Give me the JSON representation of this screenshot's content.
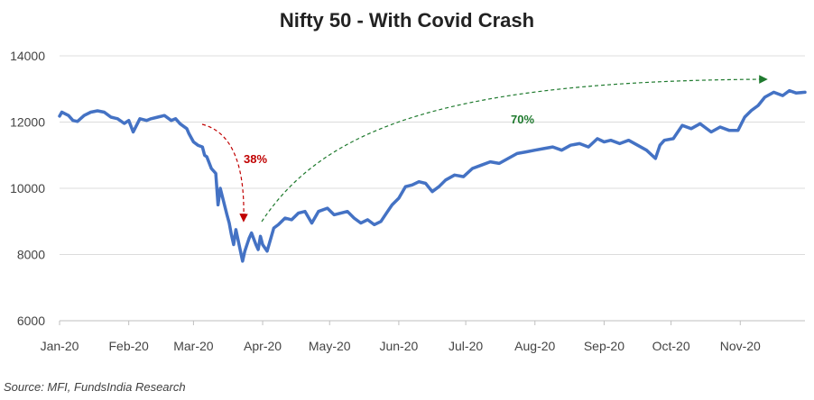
{
  "chart_data": {
    "type": "line",
    "title": "Nifty 50 - With Covid Crash",
    "xlabel": "",
    "ylabel": "",
    "ylim": [
      6000,
      14000
    ],
    "yticks": [
      6000,
      8000,
      10000,
      12000,
      14000
    ],
    "xlim": [
      "2020-01-01",
      "2020-11-30"
    ],
    "x_tick_labels": [
      "Jan-20",
      "Feb-20",
      "Mar-20",
      "Apr-20",
      "May-20",
      "Jun-20",
      "Jul-20",
      "Aug-20",
      "Sep-20",
      "Oct-20",
      "Nov-20"
    ],
    "x_tick_dates": [
      "2020-01-01",
      "2020-02-01",
      "2020-03-01",
      "2020-04-01",
      "2020-05-01",
      "2020-06-01",
      "2020-07-01",
      "2020-08-01",
      "2020-09-01",
      "2020-10-01",
      "2020-11-01"
    ],
    "grid": "horizontal",
    "series": [
      {
        "color": "#4472c4",
        "x": [
          "2020-01-01",
          "2020-01-02",
          "2020-01-05",
          "2020-01-07",
          "2020-01-09",
          "2020-01-12",
          "2020-01-15",
          "2020-01-18",
          "2020-01-21",
          "2020-01-24",
          "2020-01-27",
          "2020-01-30",
          "2020-02-01",
          "2020-02-03",
          "2020-02-06",
          "2020-02-09",
          "2020-02-11",
          "2020-02-14",
          "2020-02-17",
          "2020-02-20",
          "2020-02-22",
          "2020-02-24",
          "2020-02-25",
          "2020-02-27",
          "2020-02-28",
          "2020-03-01",
          "2020-03-03",
          "2020-03-05",
          "2020-03-06",
          "2020-03-07",
          "2020-03-09",
          "2020-03-11",
          "2020-03-12",
          "2020-03-13",
          "2020-03-16",
          "2020-03-17",
          "2020-03-18",
          "2020-03-19",
          "2020-03-20",
          "2020-03-23",
          "2020-03-24",
          "2020-03-25",
          "2020-03-26",
          "2020-03-27",
          "2020-03-29",
          "2020-03-30",
          "2020-03-31",
          "2020-04-01",
          "2020-04-03",
          "2020-04-06",
          "2020-04-08",
          "2020-04-11",
          "2020-04-14",
          "2020-04-17",
          "2020-04-20",
          "2020-04-23",
          "2020-04-26",
          "2020-04-30",
          "2020-05-03",
          "2020-05-06",
          "2020-05-09",
          "2020-05-12",
          "2020-05-15",
          "2020-05-18",
          "2020-05-21",
          "2020-05-24",
          "2020-05-27",
          "2020-05-29",
          "2020-06-01",
          "2020-06-04",
          "2020-06-07",
          "2020-06-10",
          "2020-06-13",
          "2020-06-16",
          "2020-06-19",
          "2020-06-22",
          "2020-06-26",
          "2020-06-30",
          "2020-07-04",
          "2020-07-08",
          "2020-07-12",
          "2020-07-16",
          "2020-07-20",
          "2020-07-24",
          "2020-07-28",
          "2020-08-01",
          "2020-08-05",
          "2020-08-09",
          "2020-08-13",
          "2020-08-17",
          "2020-08-21",
          "2020-08-25",
          "2020-08-29",
          "2020-09-01",
          "2020-09-04",
          "2020-09-08",
          "2020-09-12",
          "2020-09-16",
          "2020-09-20",
          "2020-09-24",
          "2020-09-26",
          "2020-09-28",
          "2020-10-02",
          "2020-10-06",
          "2020-10-10",
          "2020-10-14",
          "2020-10-16",
          "2020-10-19",
          "2020-10-23",
          "2020-10-27",
          "2020-10-31",
          "2020-11-03",
          "2020-11-06",
          "2020-11-09",
          "2020-11-12",
          "2020-11-16",
          "2020-11-20",
          "2020-11-23",
          "2020-11-26",
          "2020-11-30"
        ],
        "values": [
          12180,
          12300,
          12200,
          12050,
          12020,
          12200,
          12300,
          12340,
          12300,
          12150,
          12100,
          11960,
          12050,
          11700,
          12100,
          12050,
          12100,
          12150,
          12200,
          12050,
          12100,
          11950,
          11900,
          11800,
          11650,
          11400,
          11300,
          11250,
          11000,
          10950,
          10600,
          10450,
          9500,
          10000,
          9200,
          8950,
          8600,
          8300,
          8750,
          7800,
          8100,
          8300,
          8500,
          8650,
          8300,
          8150,
          8550,
          8300,
          8100,
          8800,
          8900,
          9100,
          9050,
          9250,
          9300,
          8950,
          9300,
          9400,
          9200,
          9250,
          9300,
          9100,
          8950,
          9050,
          8900,
          9000,
          9300,
          9500,
          9700,
          10050,
          10100,
          10200,
          10150,
          9900,
          10050,
          10250,
          10400,
          10350,
          10600,
          10700,
          10800,
          10750,
          10900,
          11050,
          11100,
          11150,
          11200,
          11250,
          11150,
          11300,
          11350,
          11250,
          11500,
          11400,
          11450,
          11350,
          11450,
          11300,
          11150,
          10900,
          11300,
          11450,
          11500,
          11900,
          11800,
          11950,
          11850,
          11700,
          11850,
          11750,
          11750,
          12150,
          12350,
          12500,
          12750,
          12900,
          12800,
          12950,
          12880,
          12900
        ]
      }
    ],
    "annotations": [
      {
        "text": "38%",
        "color": "#c00000"
      },
      {
        "text": "70%",
        "color": "#1f7a2e"
      }
    ],
    "source": "Source: MFI, FundsIndia Research"
  }
}
